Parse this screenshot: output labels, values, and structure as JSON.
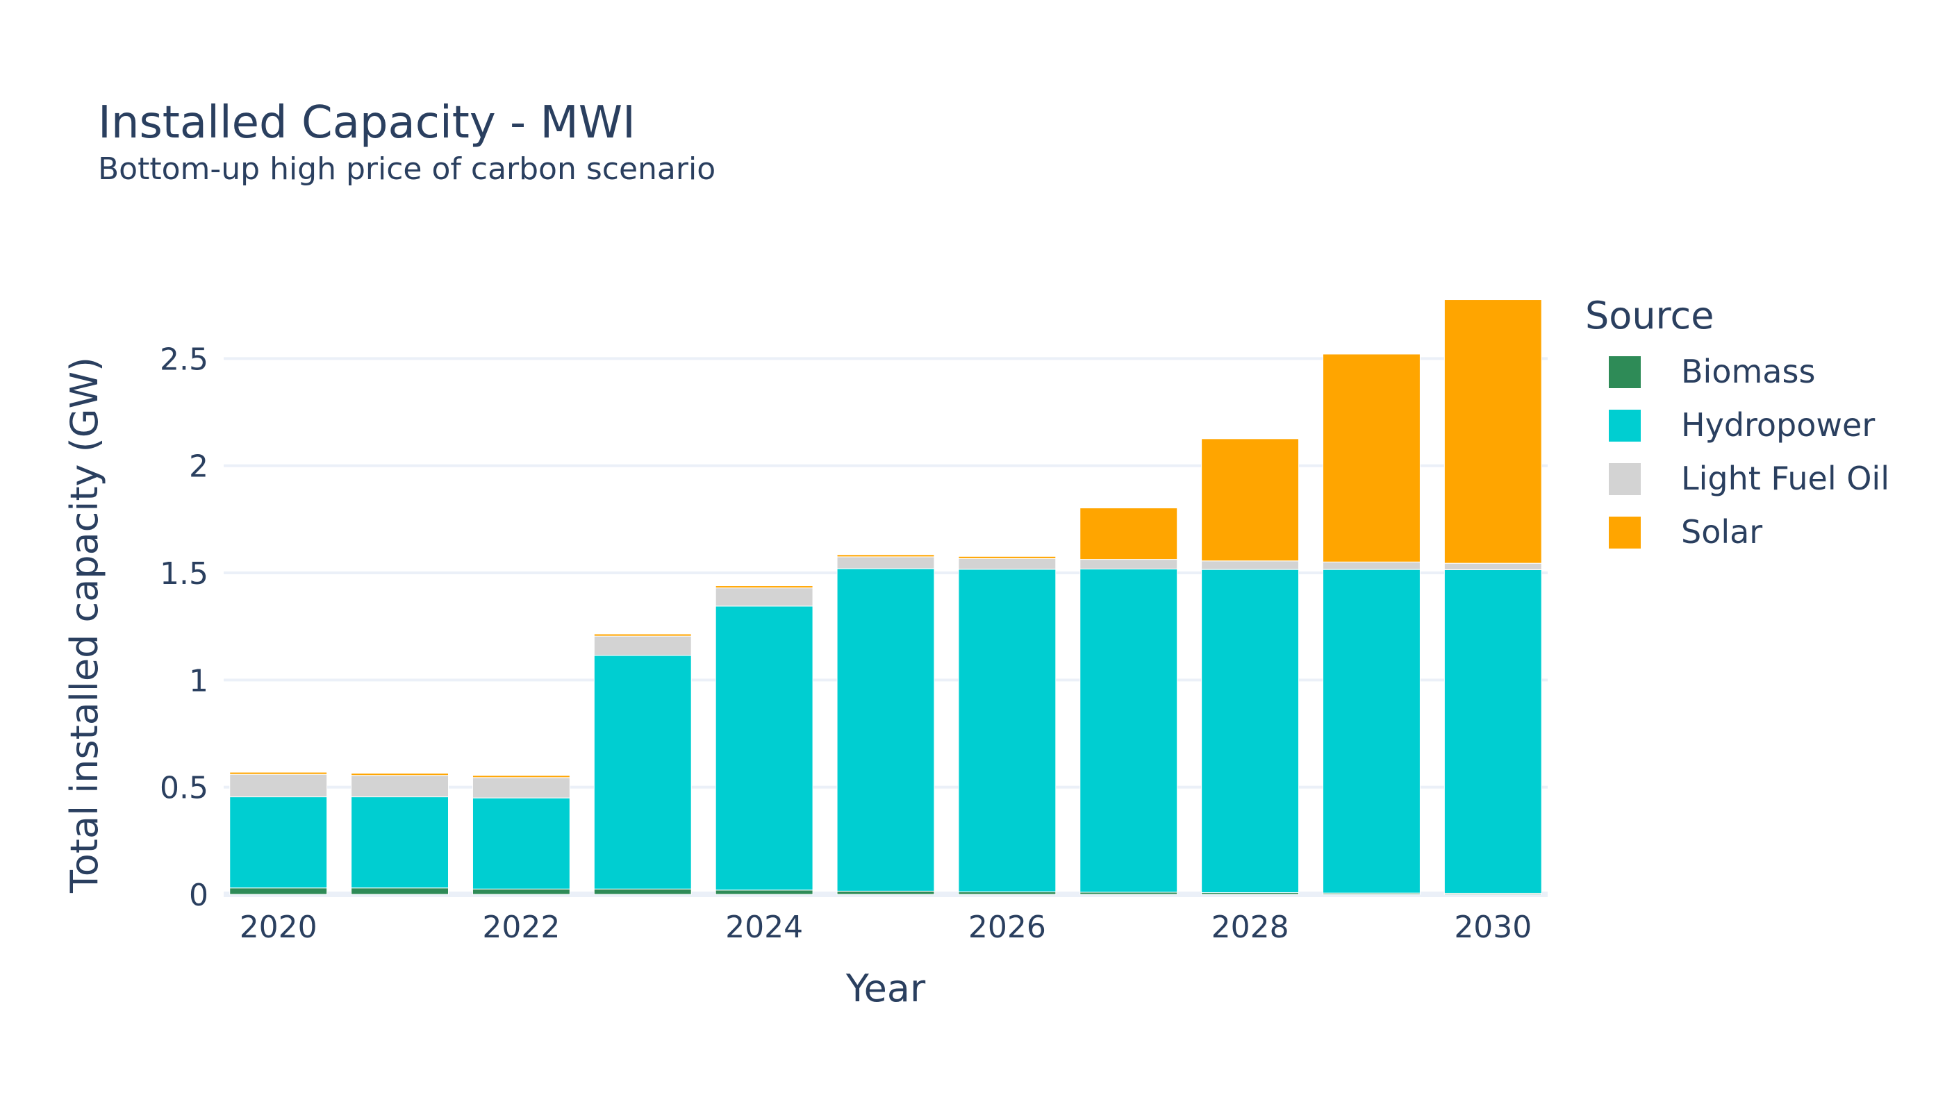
{
  "chart_data": {
    "type": "bar",
    "stacked": true,
    "title": "Installed Capacity - MWI",
    "subtitle": "Bottom-up high price of carbon scenario",
    "xlabel": "Year",
    "ylabel": "Total installed capacity (GW)",
    "x": [
      2020,
      2021,
      2022,
      2023,
      2024,
      2025,
      2026,
      2027,
      2028,
      2029,
      2030
    ],
    "xticks": [
      2020,
      2022,
      2024,
      2026,
      2028,
      2030
    ],
    "xlim": [
      2019.55,
      2030.45
    ],
    "yticks": [
      0,
      0.5,
      1,
      1.5,
      2,
      2.5
    ],
    "ytick_labels": [
      "0",
      "0.5",
      "1",
      "1.5",
      "2",
      "2.5"
    ],
    "ylim": [
      0,
      2.78
    ],
    "grid": true,
    "legend": {
      "title": "Source",
      "position": "right"
    },
    "series": [
      {
        "name": "Biomass",
        "color": "#2e8b57",
        "values": [
          0.03,
          0.03,
          0.025,
          0.025,
          0.02,
          0.015,
          0.012,
          0.01,
          0.008,
          0.006,
          0.005
        ]
      },
      {
        "name": "Hydropower",
        "color": "#00ced1",
        "values": [
          0.425,
          0.425,
          0.425,
          1.09,
          1.325,
          1.505,
          1.505,
          1.508,
          1.508,
          1.51,
          1.51
        ]
      },
      {
        "name": "Light Fuel Oil",
        "color": "#d3d3d3",
        "values": [
          0.105,
          0.1,
          0.095,
          0.09,
          0.085,
          0.055,
          0.05,
          0.045,
          0.04,
          0.035,
          0.03
        ]
      },
      {
        "name": "Solar",
        "color": "#ffa500",
        "values": [
          0.01,
          0.01,
          0.01,
          0.01,
          0.01,
          0.01,
          0.01,
          0.24,
          0.57,
          0.97,
          1.23
        ]
      }
    ]
  }
}
